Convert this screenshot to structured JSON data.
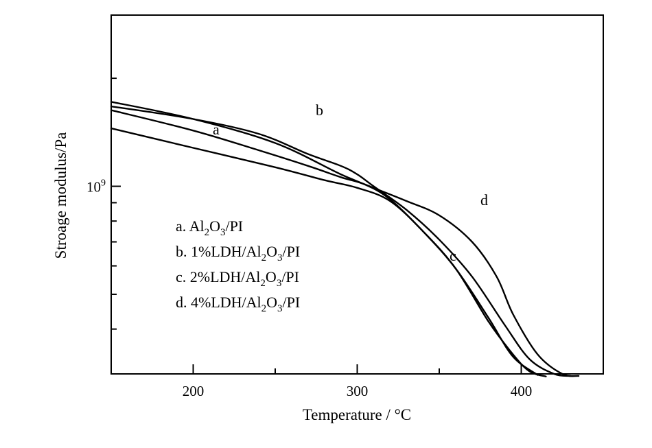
{
  "chart_data": {
    "type": "line",
    "xlabel": "Temperature / °C",
    "ylabel": "Stroage modulus/Pa",
    "xlim": [
      150,
      450
    ],
    "ylim": [
      300000000,
      3000000000
    ],
    "yscale": "log",
    "x_ticks": [
      200,
      300,
      400
    ],
    "x_tick_labels": [
      "200",
      "300",
      "400"
    ],
    "y_tick_label": {
      "base": "10",
      "exp": "9",
      "value": 1000000000
    },
    "grid": false,
    "legend_position": "middle-left",
    "legend": [
      {
        "key": "a.",
        "segments": [
          [
            "Al",
            ""
          ],
          [
            "2",
            "sub"
          ],
          [
            "O",
            ""
          ],
          [
            "3",
            "sub"
          ],
          [
            "/PI",
            ""
          ]
        ]
      },
      {
        "key": "b.",
        "segments": [
          [
            "1%LDH/Al",
            ""
          ],
          [
            "2",
            "sub"
          ],
          [
            "O",
            ""
          ],
          [
            "3",
            "sub"
          ],
          [
            "/PI",
            ""
          ]
        ]
      },
      {
        "key": "c.",
        "segments": [
          [
            "2%LDH/Al",
            ""
          ],
          [
            "2",
            "sub"
          ],
          [
            "O",
            ""
          ],
          [
            "3",
            "sub"
          ],
          [
            "/PI",
            ""
          ]
        ]
      },
      {
        "key": "d.",
        "segments": [
          [
            "4%LDH/Al",
            ""
          ],
          [
            "2",
            "sub"
          ],
          [
            "O",
            ""
          ],
          [
            "3",
            "sub"
          ],
          [
            "/PI",
            ""
          ]
        ]
      }
    ],
    "series": [
      {
        "name": "a",
        "x": [
          150,
          200,
          250,
          280,
          300,
          320,
          340,
          360,
          380,
          395,
          405,
          415
        ],
        "y": [
          1450000000,
          1280000000,
          1130000000,
          1040000000,
          990000000,
          910000000,
          750000000,
          590000000,
          420000000,
          340000000,
          305000000,
          295000000
        ]
      },
      {
        "name": "b",
        "x": [
          150,
          200,
          240,
          270,
          290,
          300,
          310,
          330,
          350,
          370,
          390,
          405,
          420,
          430
        ],
        "y": [
          1670000000,
          1540000000,
          1400000000,
          1230000000,
          1140000000,
          1080000000,
          1000000000,
          860000000,
          710000000,
          560000000,
          410000000,
          330000000,
          300000000,
          296000000
        ]
      },
      {
        "name": "c",
        "x": [
          150,
          200,
          240,
          270,
          290,
          305,
          320,
          340,
          360,
          380,
          395,
          410
        ],
        "y": [
          1630000000,
          1430000000,
          1260000000,
          1140000000,
          1060000000,
          1010000000,
          920000000,
          750000000,
          590000000,
          430000000,
          335000000,
          298000000
        ]
      },
      {
        "name": "d",
        "x": [
          150,
          200,
          250,
          290,
          310,
          330,
          350,
          370,
          385,
          395,
          410,
          425,
          435
        ],
        "y": [
          1720000000,
          1540000000,
          1320000000,
          1080000000,
          990000000,
          910000000,
          830000000,
          700000000,
          560000000,
          440000000,
          340000000,
          300000000,
          296000000
        ]
      }
    ]
  }
}
